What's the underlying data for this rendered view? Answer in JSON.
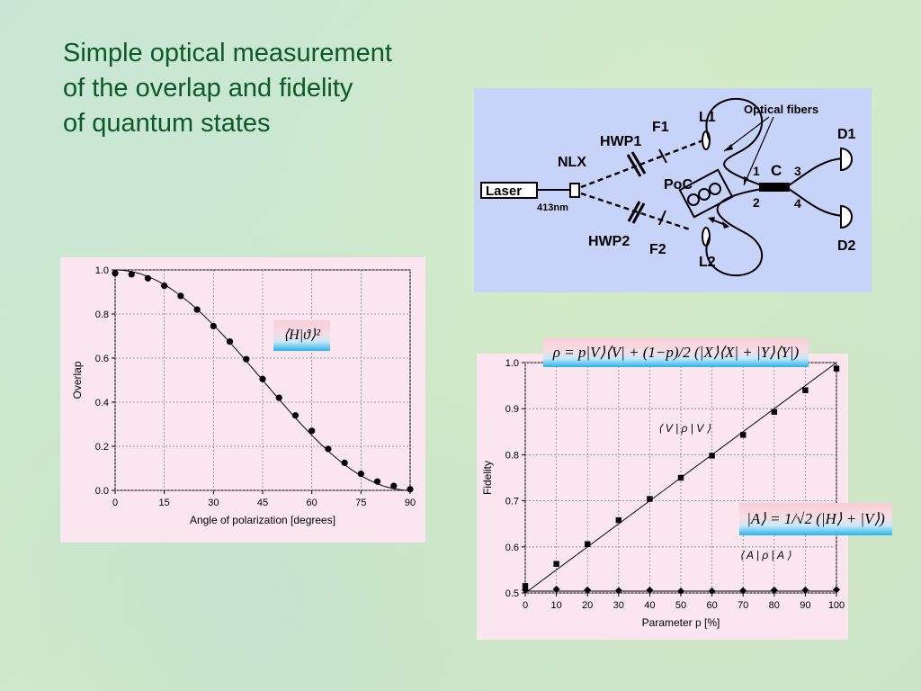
{
  "title": {
    "line1": "Simple optical measurement",
    "line2": "of the overlap and fidelity",
    "line3": "of quantum states"
  },
  "diagram": {
    "labels": {
      "laser": "Laser",
      "wavelength": "413nm",
      "nlx": "NLX",
      "hwp1": "HWP1",
      "hwp2": "HWP2",
      "f1": "F1",
      "f2": "F2",
      "l1": "L1",
      "l2": "L2",
      "poc": "PoC",
      "fibers": "Optical fibers",
      "c": "C",
      "port1": "1",
      "port2": "2",
      "port3": "3",
      "port4": "4",
      "d1": "D1",
      "d2": "D2"
    },
    "colors": {
      "background": "#c7d3f9",
      "ink": "#000000"
    }
  },
  "formulas": {
    "overlap": "⟨H|ϑ⟩²",
    "rho": "ρ = p|V⟩⟨V| + (1−p)/2 (|X⟩⟨X| + |Y⟩⟨Y|)",
    "a_state": "|A⟩ = 1/√2 (|H⟩ + |V⟩)"
  },
  "chart_data": [
    {
      "type": "scatter",
      "xlabel": "Angle of polarization [degrees]",
      "ylabel": "Overlap",
      "xlim": [
        0,
        90
      ],
      "ylim": [
        0,
        1.0
      ],
      "xticks": [
        0,
        15,
        30,
        45,
        60,
        75,
        90
      ],
      "yticks": [
        0.0,
        0.2,
        0.4,
        0.6,
        0.8,
        1.0
      ],
      "ytick_labels": [
        "0.0",
        "0.2",
        "0.4",
        "0.6",
        "0.8",
        "1.0"
      ],
      "grid": true,
      "series": [
        {
          "marker": "circle",
          "x": [
            0,
            5,
            10,
            15,
            20,
            25,
            30,
            35,
            40,
            45,
            50,
            55,
            60,
            65,
            70,
            75,
            80,
            85,
            90
          ],
          "y": [
            0.985,
            0.98,
            0.962,
            0.928,
            0.882,
            0.82,
            0.745,
            0.675,
            0.595,
            0.505,
            0.42,
            0.34,
            0.27,
            0.188,
            0.125,
            0.075,
            0.04,
            0.02,
            0.005
          ]
        }
      ],
      "fit": {
        "style": "line",
        "function": "cos^2"
      },
      "colors": {
        "background": "#fbe6f0",
        "ink": "#000000",
        "grid": "#888888"
      }
    },
    {
      "type": "scatter",
      "xlabel": "Parameter p [%]",
      "ylabel": "Fidelity",
      "xlim": [
        0,
        100
      ],
      "ylim": [
        0.5,
        1.0
      ],
      "xticks": [
        0,
        10,
        20,
        30,
        40,
        50,
        60,
        70,
        80,
        90,
        100
      ],
      "yticks": [
        0.5,
        0.6,
        0.7,
        0.8,
        0.9,
        1.0
      ],
      "ytick_labels": [
        "0.5",
        "0.6",
        "0.7",
        "0.8",
        "0.9",
        "1.0"
      ],
      "grid": true,
      "annotations": [
        "⟨ V | ρ | V ⟩",
        "⟨ A | ρ | A ⟩"
      ],
      "series": [
        {
          "marker": "square",
          "x": [
            0,
            10,
            20,
            30,
            40,
            50,
            60,
            70,
            80,
            90,
            100
          ],
          "y": [
            0.515,
            0.563,
            0.606,
            0.658,
            0.704,
            0.75,
            0.798,
            0.843,
            0.893,
            0.94,
            0.987
          ]
        },
        {
          "marker": "diamond",
          "x": [
            0,
            10,
            20,
            30,
            40,
            50,
            60,
            70,
            80,
            90,
            100
          ],
          "y": [
            0.506,
            0.508,
            0.506,
            0.505,
            0.506,
            0.504,
            0.504,
            0.505,
            0.506,
            0.506,
            0.507
          ]
        }
      ],
      "fit_lines": [
        {
          "x": [
            0,
            100
          ],
          "y": [
            0.5,
            1.0
          ]
        },
        {
          "x": [
            0,
            100
          ],
          "y": [
            0.504,
            0.504
          ]
        }
      ],
      "colors": {
        "background": "#fbe6f0",
        "ink": "#000000",
        "grid": "#888888"
      }
    }
  ]
}
